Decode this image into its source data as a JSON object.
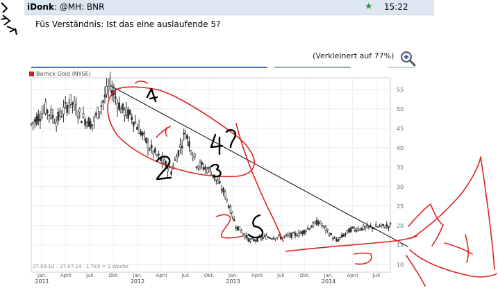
{
  "post": {
    "author": "iDonk",
    "recipient": ": @MH: BNR",
    "time": "15:22",
    "message": "Füs Verständnis: Ist das eine auslaufende 5?"
  },
  "image": {
    "zoom_note": "(Verkleinert auf 77%)"
  },
  "chart_data": {
    "type": "candlestick",
    "legend": "Barrick Gold (NYSE)",
    "legend_color": "#cc2222",
    "footer": "27.09.10 – 27.07.14 · 1 Tick = 1 Woche",
    "y_ticks": [
      10,
      15,
      20,
      25,
      30,
      35,
      40,
      45,
      50,
      55
    ],
    "ylim": [
      8,
      58
    ],
    "x_ticks": [
      "Jan.",
      "April",
      "Juli",
      "Okt.",
      "Jan.",
      "April",
      "Juli",
      "Okt.",
      "Jan.",
      "April",
      "Juli",
      "Okt.",
      "Jan.",
      "April",
      "Juli"
    ],
    "year_labels": [
      {
        "label": "2011",
        "tick_index": 0
      },
      {
        "label": "2012",
        "tick_index": 4
      },
      {
        "label": "2013",
        "tick_index": 8
      },
      {
        "label": "2014",
        "tick_index": 12
      }
    ],
    "price_path": [
      {
        "week": 0,
        "price": 46
      },
      {
        "week": 8,
        "price": 50
      },
      {
        "week": 14,
        "price": 47
      },
      {
        "week": 22,
        "price": 52
      },
      {
        "week": 28,
        "price": 48
      },
      {
        "week": 34,
        "price": 46
      },
      {
        "week": 44,
        "price": 56
      },
      {
        "week": 50,
        "price": 50
      },
      {
        "week": 56,
        "price": 48
      },
      {
        "week": 66,
        "price": 40
      },
      {
        "week": 78,
        "price": 34
      },
      {
        "week": 86,
        "price": 44
      },
      {
        "week": 92,
        "price": 36
      },
      {
        "week": 100,
        "price": 34
      },
      {
        "week": 108,
        "price": 28
      },
      {
        "week": 114,
        "price": 20
      },
      {
        "week": 122,
        "price": 16
      },
      {
        "week": 130,
        "price": 17
      },
      {
        "week": 140,
        "price": 17
      },
      {
        "week": 150,
        "price": 18
      },
      {
        "week": 160,
        "price": 21
      },
      {
        "week": 170,
        "price": 16
      },
      {
        "week": 178,
        "price": 19
      },
      {
        "week": 200,
        "price": 20
      }
    ],
    "trendline": [
      {
        "week": 44,
        "price": 56
      },
      {
        "week": 200,
        "price": 17
      }
    ],
    "annotations": {
      "wave_labels": [
        "1",
        "2",
        "3",
        "4?",
        "5"
      ]
    }
  }
}
